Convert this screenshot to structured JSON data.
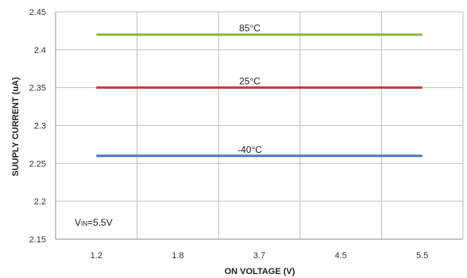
{
  "chart_data": {
    "type": "line",
    "xlabel": "ON VOLTAGE (V)",
    "ylabel": "SUUPLY CURRENT (uA)",
    "x": [
      "1.2",
      "1.8",
      "3.7",
      "4.5",
      "5.5"
    ],
    "ylim": [
      2.15,
      2.45
    ],
    "yticks": [
      "2.15",
      "2.2",
      "2.25",
      "2.3",
      "2.35",
      "2.4",
      "2.45"
    ],
    "grid": true,
    "legend": "none",
    "series": [
      {
        "name": "85°C",
        "values": [
          2.42,
          2.42,
          2.42,
          2.42,
          2.42
        ],
        "color": "#8DB841"
      },
      {
        "name": "25°C",
        "values": [
          2.35,
          2.35,
          2.35,
          2.35,
          2.35
        ],
        "color": "#C0393F"
      },
      {
        "name": "-40°C",
        "values": [
          2.26,
          2.26,
          2.26,
          2.26,
          2.26
        ],
        "color": "#4A78BE"
      }
    ],
    "annotation": {
      "prefix": "V",
      "sub": "IN",
      "suffix": "=5.5V"
    },
    "colors": {
      "grid": "#bfbfbf",
      "axis": "#8c8c8c"
    }
  }
}
